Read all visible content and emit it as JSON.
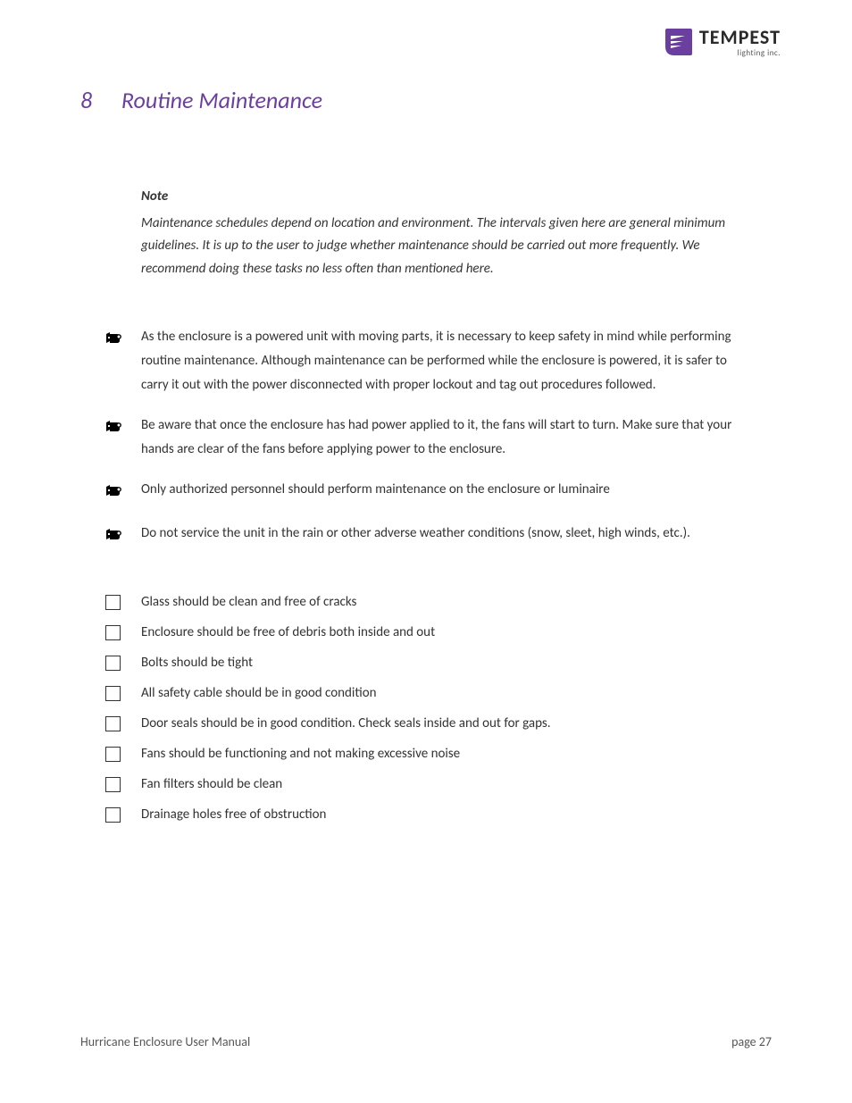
{
  "brand": {
    "name": "TEMPEST",
    "tagline": "lighting inc.",
    "logo_color": "#6b3fa0",
    "name_fontsize": 22
  },
  "heading": {
    "number": "8",
    "title": "Routine Maintenance",
    "color": "#6b3fa0",
    "fontsize": 26
  },
  "note": {
    "label": "Note",
    "body": "Maintenance schedules depend on location and environment. The intervals given here are general minimum guidelines. It is up to the user to judge whether maintenance should be carried out more frequently. We recommend doing these tasks no less often than mentioned here.",
    "fontsize": 15,
    "color": "#333333"
  },
  "warnings": {
    "icon_color": "#000000",
    "fontsize": 15,
    "items": [
      "As the enclosure is a powered unit with moving parts, it is necessary to keep safety in mind while performing routine maintenance. Although maintenance can be performed while the enclosure is powered, it is safer to carry it out with the power disconnected with proper lockout and tag out procedures followed.",
      "Be aware that once the enclosure has had power applied to it, the fans will start to turn. Make sure that your hands are clear of the fans before applying power to the enclosure.",
      "Only authorized personnel should perform maintenance on the enclosure or luminaire",
      "Do not service the unit in the rain or other adverse weather conditions (snow, sleet, high winds, etc.)."
    ]
  },
  "checklist": {
    "fontsize": 15,
    "box_color": "#333333",
    "items": [
      "Glass should be clean and free of cracks",
      "Enclosure should be free of debris both inside and out",
      "Bolts should be tight",
      "All safety cable should be in good condition",
      "Door seals should be in good condition. Check seals inside and out for gaps.",
      "Fans should be functioning and not making excessive noise",
      "Fan filters should be clean",
      "Drainage holes free of obstruction"
    ]
  },
  "footer": {
    "left": "Hurricane Enclosure User Manual",
    "right": "page 27",
    "fontsize": 14,
    "color": "#555555"
  },
  "page": {
    "background": "#ffffff",
    "body_text_color": "#333333"
  }
}
